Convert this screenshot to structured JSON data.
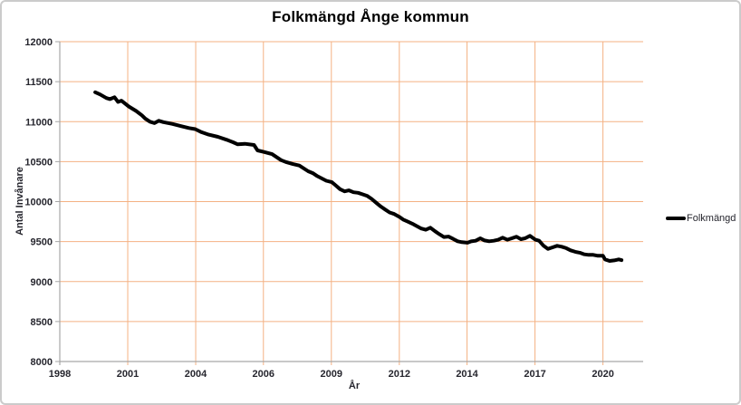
{
  "chart_data": {
    "type": "line",
    "title": "Folkmängd Ånge kommun",
    "xlabel": "År",
    "ylabel": "Antal Invånare",
    "legend": [
      {
        "label": "Folkmängd",
        "color": "#000000"
      }
    ],
    "legend_position": "right-middle",
    "grid": true,
    "colors": {
      "gridline": "#F4B183",
      "axis": "#A6A6A6",
      "tick_label": "#26262E",
      "series": "#000000",
      "frame_border": "#CBCBCB",
      "background": "#FFFFFF"
    },
    "x_range": [
      1998.83,
      2021.75
    ],
    "y_range": [
      8000,
      12000
    ],
    "y_ticks": [
      8000,
      8500,
      9000,
      9500,
      10000,
      10500,
      11000,
      11500,
      12000
    ],
    "x_ticks": [
      {
        "label": "1998",
        "x": 1998.83
      },
      {
        "label": "2001",
        "x": 2001.5
      },
      {
        "label": "2004",
        "x": 2004.17
      },
      {
        "label": "2006",
        "x": 2006.83
      },
      {
        "label": "2009",
        "x": 2009.5
      },
      {
        "label": "2012",
        "x": 2012.17
      },
      {
        "label": "2014",
        "x": 2014.83
      },
      {
        "label": "2017",
        "x": 2017.5
      },
      {
        "label": "2020",
        "x": 2020.17
      }
    ],
    "series": [
      {
        "name": "Folkmängd",
        "color": "#000000",
        "line_width": 4,
        "points": [
          [
            2000.22,
            11368
          ],
          [
            2000.41,
            11341
          ],
          [
            2000.66,
            11295
          ],
          [
            2000.8,
            11282
          ],
          [
            2000.98,
            11305
          ],
          [
            2001.12,
            11247
          ],
          [
            2001.25,
            11262
          ],
          [
            2001.54,
            11190
          ],
          [
            2001.83,
            11133
          ],
          [
            2002.05,
            11080
          ],
          [
            2002.19,
            11038
          ],
          [
            2002.37,
            11000
          ],
          [
            2002.55,
            10981
          ],
          [
            2002.72,
            11011
          ],
          [
            2002.9,
            10994
          ],
          [
            2003.26,
            10971
          ],
          [
            2003.61,
            10943
          ],
          [
            2003.9,
            10920
          ],
          [
            2004.15,
            10906
          ],
          [
            2004.4,
            10868
          ],
          [
            2004.68,
            10837
          ],
          [
            2005.04,
            10810
          ],
          [
            2005.39,
            10773
          ],
          [
            2005.64,
            10742
          ],
          [
            2005.82,
            10716
          ],
          [
            2006.1,
            10723
          ],
          [
            2006.46,
            10708
          ],
          [
            2006.6,
            10640
          ],
          [
            2006.85,
            10621
          ],
          [
            2007.17,
            10594
          ],
          [
            2007.52,
            10519
          ],
          [
            2007.7,
            10496
          ],
          [
            2007.99,
            10469
          ],
          [
            2008.24,
            10451
          ],
          [
            2008.59,
            10380
          ],
          [
            2008.77,
            10356
          ],
          [
            2008.95,
            10318
          ],
          [
            2009.3,
            10261
          ],
          [
            2009.52,
            10242
          ],
          [
            2009.66,
            10205
          ],
          [
            2009.84,
            10155
          ],
          [
            2010.02,
            10128
          ],
          [
            2010.19,
            10140
          ],
          [
            2010.37,
            10117
          ],
          [
            2010.55,
            10110
          ],
          [
            2010.73,
            10091
          ],
          [
            2010.9,
            10072
          ],
          [
            2011.08,
            10034
          ],
          [
            2011.26,
            9985
          ],
          [
            2011.44,
            9939
          ],
          [
            2011.61,
            9901
          ],
          [
            2011.79,
            9864
          ],
          [
            2011.97,
            9845
          ],
          [
            2012.18,
            9807
          ],
          [
            2012.32,
            9776
          ],
          [
            2012.5,
            9750
          ],
          [
            2012.68,
            9724
          ],
          [
            2012.86,
            9693
          ],
          [
            2013.03,
            9663
          ],
          [
            2013.21,
            9648
          ],
          [
            2013.39,
            9674
          ],
          [
            2013.57,
            9630
          ],
          [
            2013.75,
            9591
          ],
          [
            2013.92,
            9557
          ],
          [
            2014.1,
            9563
          ],
          [
            2014.28,
            9534
          ],
          [
            2014.46,
            9504
          ],
          [
            2014.63,
            9492
          ],
          [
            2014.85,
            9485
          ],
          [
            2014.99,
            9503
          ],
          [
            2015.17,
            9511
          ],
          [
            2015.35,
            9541
          ],
          [
            2015.52,
            9514
          ],
          [
            2015.7,
            9504
          ],
          [
            2015.88,
            9511
          ],
          [
            2016.06,
            9523
          ],
          [
            2016.23,
            9549
          ],
          [
            2016.41,
            9523
          ],
          [
            2016.59,
            9541
          ],
          [
            2016.77,
            9561
          ],
          [
            2016.95,
            9530
          ],
          [
            2017.12,
            9542
          ],
          [
            2017.3,
            9572
          ],
          [
            2017.52,
            9523
          ],
          [
            2017.66,
            9511
          ],
          [
            2017.84,
            9447
          ],
          [
            2018.01,
            9409
          ],
          [
            2018.19,
            9428
          ],
          [
            2018.37,
            9447
          ],
          [
            2018.55,
            9436
          ],
          [
            2018.73,
            9418
          ],
          [
            2018.9,
            9390
          ],
          [
            2019.08,
            9372
          ],
          [
            2019.26,
            9361
          ],
          [
            2019.44,
            9341
          ],
          [
            2019.61,
            9334
          ],
          [
            2019.79,
            9334
          ],
          [
            2019.97,
            9322
          ],
          [
            2020.17,
            9322
          ],
          [
            2020.25,
            9277
          ],
          [
            2020.43,
            9258
          ],
          [
            2020.61,
            9265
          ],
          [
            2020.79,
            9277
          ],
          [
            2020.9,
            9268
          ]
        ]
      }
    ]
  }
}
